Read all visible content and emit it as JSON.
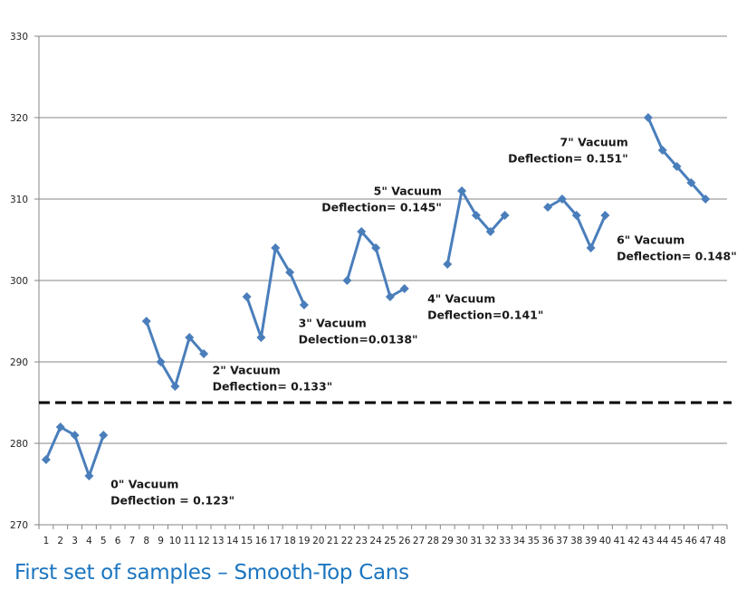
{
  "caption": "First set of samples – Smooth-Top Cans",
  "colors": {
    "series": "#4a7ebb",
    "grid": "#868686",
    "threshold": "#000000",
    "caption": "#1b75c0"
  },
  "chart_data": {
    "type": "line",
    "title": "",
    "xlabel": "",
    "ylabel": "",
    "x_categories": [
      1,
      2,
      3,
      4,
      5,
      6,
      7,
      8,
      9,
      10,
      11,
      12,
      13,
      14,
      15,
      16,
      17,
      18,
      19,
      20,
      21,
      22,
      23,
      24,
      25,
      26,
      27,
      28,
      29,
      30,
      31,
      32,
      33,
      34,
      35,
      36,
      37,
      38,
      39,
      40,
      41,
      42,
      43,
      44,
      45,
      46,
      47,
      48
    ],
    "ylim": [
      270,
      330
    ],
    "yticks": [
      270,
      280,
      290,
      300,
      310,
      320,
      330
    ],
    "grid": true,
    "legend": "none",
    "marker": "diamond",
    "series": [
      {
        "name": "0\" Vacuum",
        "x": [
          1,
          2,
          3,
          4,
          5
        ],
        "values": [
          278,
          282,
          281,
          276,
          281
        ]
      },
      {
        "name": "2\" Vacuum",
        "x": [
          8,
          9,
          10,
          11,
          12
        ],
        "values": [
          295,
          290,
          287,
          293,
          291
        ]
      },
      {
        "name": "3\" Vacuum",
        "x": [
          15,
          16,
          17,
          18,
          19
        ],
        "values": [
          298,
          293,
          304,
          301,
          297
        ]
      },
      {
        "name": "4\" Vacuum",
        "x": [
          22,
          23,
          24,
          25,
          26
        ],
        "values": [
          300,
          306,
          304,
          298,
          299
        ]
      },
      {
        "name": "5\" Vacuum",
        "x": [
          29,
          30,
          31,
          32,
          33
        ],
        "values": [
          302,
          311,
          308,
          306,
          308
        ]
      },
      {
        "name": "6\" Vacuum",
        "x": [
          36,
          37,
          38,
          39,
          40
        ],
        "values": [
          309,
          310,
          308,
          304,
          308
        ]
      },
      {
        "name": "7\" Vacuum",
        "x": [
          43,
          44,
          45,
          46,
          47
        ],
        "values": [
          320,
          316,
          314,
          312,
          310
        ]
      }
    ],
    "threshold_line": {
      "value": 285,
      "style": "dashed"
    },
    "annotations": [
      {
        "lines": [
          "0\" Vacuum",
          "Deflection = 0.123\""
        ],
        "x": 5.5,
        "y": 274.5,
        "anchor": "start"
      },
      {
        "lines": [
          "2\" Vacuum",
          "Deflection= 0.133\""
        ],
        "x": 12.6,
        "y": 288.5,
        "anchor": "start"
      },
      {
        "lines": [
          "3\" Vacuum",
          "Delection=0.0138\""
        ],
        "x": 18.6,
        "y": 294.3,
        "anchor": "start"
      },
      {
        "lines": [
          "4\" Vacuum",
          "Deflection=0.141\""
        ],
        "x": 27.6,
        "y": 297.3,
        "anchor": "start"
      },
      {
        "lines": [
          "5\" Vacuum",
          "Deflection= 0.145\""
        ],
        "x": 28.6,
        "y": 310.5,
        "anchor": "end"
      },
      {
        "lines": [
          "6\" Vacuum",
          "Deflection= 0.148\""
        ],
        "x": 40.8,
        "y": 304.5,
        "anchor": "start"
      },
      {
        "lines": [
          "7\" Vacuum",
          "Deflection= 0.151\""
        ],
        "x": 41.6,
        "y": 316.5,
        "anchor": "end"
      }
    ]
  }
}
